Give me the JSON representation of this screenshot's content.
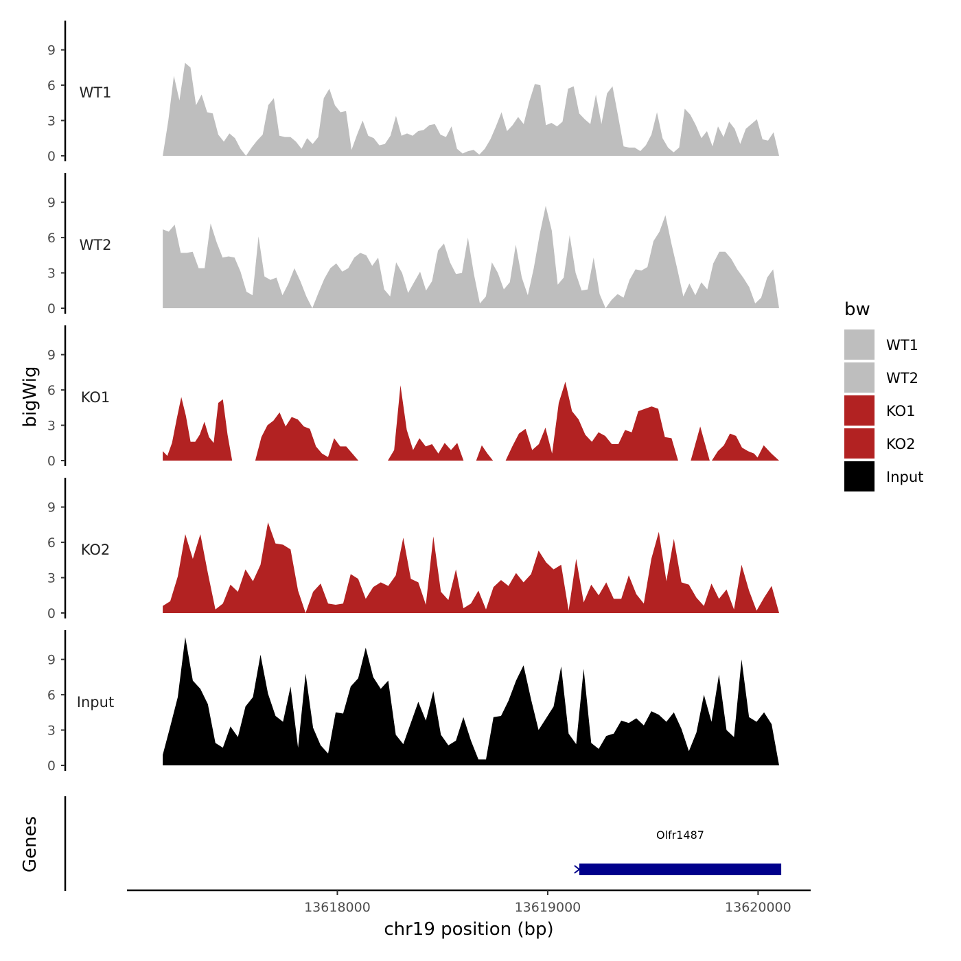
{
  "chart_data": {
    "type": "area",
    "y_axis_title": "bigWig",
    "genes_axis_title": "Genes",
    "x_axis_title": "chr19 position (bp)",
    "x_ticks": [
      13618000,
      13619000,
      13620000
    ],
    "x_tick_labels": [
      "13618000",
      "13619000",
      "13620000"
    ],
    "xlim": [
      13617000,
      13620250
    ],
    "data_range": [
      13617170,
      13620100
    ],
    "ylim": [
      0,
      11.5
    ],
    "y_ticks": [
      0,
      3,
      6,
      9
    ],
    "y_tick_labels": [
      "0",
      "3",
      "6",
      "9"
    ],
    "legend": {
      "title": "bw",
      "entries": [
        {
          "label": "WT1",
          "color": "#BEBEBE"
        },
        {
          "label": "WT2",
          "color": "#BEBEBE"
        },
        {
          "label": "KO1",
          "color": "#B22222"
        },
        {
          "label": "KO2",
          "color": "#B22222"
        },
        {
          "label": "Input",
          "color": "#000000"
        }
      ]
    },
    "tracks": [
      {
        "name": "WT1",
        "color": "#BEBEBE",
        "values": [
          0,
          3,
          6.8,
          4.7,
          7.9,
          7.5,
          4.3,
          5.2,
          3.7,
          3.6,
          1.8,
          1.2,
          1.9,
          1.5,
          0.6,
          0,
          0.7,
          1.3,
          1.8,
          4.3,
          4.9,
          1.7,
          1.6,
          1.6,
          1.2,
          0.6,
          1.5,
          1.0,
          1.6,
          4.9,
          5.7,
          4.3,
          3.7,
          3.8,
          0.5,
          1.8,
          3.0,
          1.7,
          1.5,
          0.9,
          1.0,
          1.7,
          3.4,
          1.7,
          1.9,
          1.7,
          2.1,
          2.2,
          2.6,
          2.7,
          1.8,
          1.6,
          2.5,
          0.6,
          0.2,
          0.4,
          0.5,
          0.1,
          0.6,
          1.4,
          2.5,
          3.7,
          2.1,
          2.6,
          3.3,
          2.7,
          4.6,
          6.1,
          6.0,
          2.6,
          2.8,
          2.5,
          2.9,
          5.7,
          5.9,
          3.6,
          3.1,
          2.7,
          5.2,
          2.7,
          5.3,
          5.9,
          3.4,
          0.8,
          0.7,
          0.7,
          0.4,
          0.9,
          1.8,
          3.7,
          1.5,
          0.7,
          0.3,
          0.7,
          4.0,
          3.5,
          2.6,
          1.5,
          2.1,
          0.8,
          2.5,
          1.6,
          2.9,
          2.3,
          1.0,
          2.3,
          2.7,
          3.1,
          1.4,
          1.3,
          2.0,
          0
        ],
        "gaps": []
      },
      {
        "name": "WT2",
        "color": "#BEBEBE",
        "values": [
          6.7,
          6.5,
          7.1,
          4.7,
          4.7,
          4.8,
          3.4,
          3.4,
          7.2,
          5.6,
          4.3,
          4.4,
          4.3,
          3.1,
          1.4,
          1.1,
          6.1,
          2.7,
          2.4,
          2.6,
          1.1,
          2.1,
          3.4,
          2.3,
          1.0,
          0,
          1.3,
          2.5,
          3.4,
          3.8,
          3.1,
          3.4,
          4.3,
          4.7,
          4.5,
          3.6,
          4.3,
          1.6,
          1.0,
          3.9,
          3.0,
          1.3,
          2.2,
          3.1,
          1.5,
          2.3,
          4.9,
          5.5,
          3.9,
          2.9,
          3.0,
          6.0,
          2.9,
          0.4,
          1.0,
          3.9,
          3.0,
          1.6,
          2.2,
          5.4,
          2.6,
          1.1,
          3.4,
          6.3,
          8.7,
          6.6,
          2.0,
          2.6,
          6.2,
          3.0,
          1.5,
          1.6,
          4.3,
          1.2,
          0,
          0.7,
          1.2,
          0.9,
          2.4,
          3.3,
          3.2,
          3.5,
          5.7,
          6.5,
          7.9,
          5.5,
          3.3,
          1.0,
          2.1,
          1.1,
          2.2,
          1.6,
          3.8,
          4.8,
          4.8,
          4.2,
          3.3,
          2.6,
          1.8,
          0.4,
          0.9,
          2.6,
          3.3,
          0
        ],
        "gaps": []
      },
      {
        "name": "KO1",
        "color": "#B22222",
        "values": [
          0.8,
          0.5,
          2.1,
          4.2,
          5.2,
          1.6,
          1.8,
          3.2,
          2.1,
          5.3,
          4.4,
          0
        ],
        "values_segments": [
          [
            0.8,
            0.4,
            1.5,
            3.5,
            5.4,
            3.8,
            1.6,
            1.6,
            2.2,
            3.3,
            2.0,
            1.5,
            4.9,
            5.2,
            2.2,
            0
          ],
          [
            0,
            2.0,
            3.0,
            3.4,
            4.1,
            2.9,
            3.7,
            3.5,
            2.9,
            2.7,
            1.2,
            0.6,
            0.3,
            1.9,
            1.2,
            1.2,
            0.6,
            0
          ],
          [
            0,
            0.9,
            6.4,
            2.6,
            0.9,
            1.9,
            1.2,
            1.4,
            0.6,
            1.5,
            0.9,
            1.5,
            0
          ],
          [
            0,
            1.3,
            0.6,
            0
          ],
          [
            0,
            1.2,
            2.3,
            2.7,
            0.9,
            1.4,
            2.8,
            0.6,
            4.9,
            6.7,
            4.2,
            3.5,
            2.2,
            1.6,
            2.4,
            2.1,
            1.4,
            1.4,
            2.6,
            2.4,
            4.2,
            4.4,
            4.6,
            4.4,
            2.0,
            1.9,
            0
          ],
          [
            0,
            2.9,
            0
          ],
          [
            0,
            0.8,
            1.3,
            2.3,
            2.1,
            1.1,
            0.8,
            0.6,
            0
          ],
          [
            0,
            1.3,
            0.6,
            0
          ]
        ],
        "segment_ranges": [
          [
            13617170,
            13617500
          ],
          [
            13617610,
            13618100
          ],
          [
            13618240,
            13618600
          ],
          [
            13618660,
            13618740
          ],
          [
            13618800,
            13619620
          ],
          [
            13619680,
            13619770
          ],
          [
            13619780,
            13620010
          ],
          [
            13619990,
            13620100
          ]
        ]
      },
      {
        "name": "KO2",
        "color": "#B22222",
        "values": [
          0.6,
          1.0,
          3.1,
          6.7,
          4.6,
          6.7,
          3.4,
          0.3,
          0.8,
          2.4,
          1.8,
          3.7,
          2.7,
          4.1,
          7.7,
          5.9,
          5.8,
          5.4,
          1.9,
          0,
          1.8,
          2.5,
          0.8,
          0.7,
          0.8,
          3.3,
          2.9,
          1.2,
          2.2,
          2.6,
          2.3,
          3.2,
          6.4,
          2.9,
          2.6,
          0.7,
          6.5,
          1.8,
          1.1,
          3.7,
          0.4,
          0.8,
          1.9,
          0.3,
          2.2,
          2.8,
          2.3,
          3.4,
          2.6,
          3.3,
          5.3,
          4.3,
          3.7,
          4.1,
          0.2,
          4.6,
          0.9,
          2.4,
          1.5,
          2.6,
          1.2,
          1.2,
          3.2,
          1.6,
          0.8,
          4.6,
          6.9,
          2.7,
          6.3,
          2.6,
          2.4,
          1.3,
          0.6,
          2.5,
          1.2,
          2.0,
          0.3,
          4.1,
          1.9,
          0.2,
          1.3,
          2.3,
          0
        ],
        "gaps": []
      },
      {
        "name": "Input",
        "color": "#000000",
        "values": [
          0.9,
          3.3,
          5.8,
          10.9,
          7.2,
          6.5,
          5.2,
          1.9,
          1.5,
          3.3,
          2.4,
          5.0,
          5.8,
          9.4,
          6.1,
          4.2,
          3.7,
          6.7,
          1.5,
          7.8,
          3.2,
          1.7,
          1.0,
          4.5,
          4.4,
          6.7,
          7.4,
          10.0,
          7.5,
          6.5,
          7.2,
          2.6,
          1.8,
          3.6,
          5.4,
          3.8,
          6.3,
          2.6,
          1.7,
          2.1,
          4.1,
          2.1,
          0.5,
          0.5,
          4.1,
          4.2,
          5.5,
          7.2,
          8.5,
          5.6,
          3.0,
          4.0,
          5.0,
          8.4,
          2.7,
          1.8,
          8.2,
          1.9,
          1.4,
          2.5,
          2.7,
          3.8,
          3.6,
          4.0,
          3.4,
          4.6,
          4.3,
          3.7,
          4.5,
          3.1,
          1.2,
          2.8,
          6.0,
          3.7,
          7.7,
          3.0,
          2.4,
          9.0,
          4.1,
          3.7,
          4.5,
          3.5,
          0
        ],
        "gaps": []
      }
    ],
    "genes": [
      {
        "name": "Olfr1487",
        "start": 13619150,
        "end": 13620110,
        "strand": "-",
        "color": "#00008B"
      }
    ]
  }
}
